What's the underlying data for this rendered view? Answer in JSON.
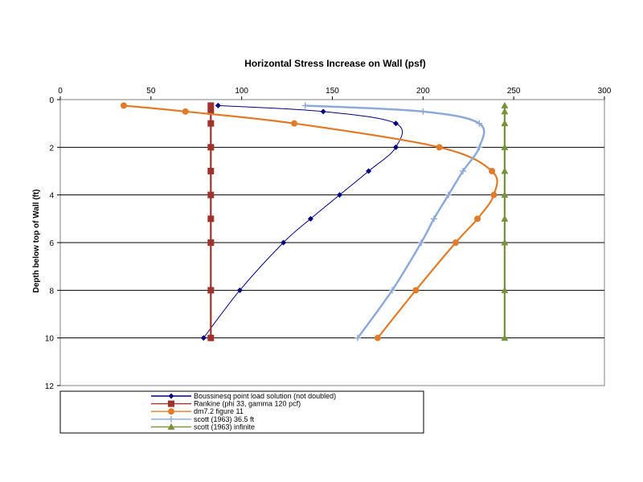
{
  "chart_data": {
    "type": "line",
    "title": "Horizontal Stress Increase on Wall (psf)",
    "xlabel": "",
    "ylabel": "Depth below top of Wall (ft)",
    "x_axis_position": "top",
    "y_axis_inverted": true,
    "xlim": [
      0,
      300
    ],
    "ylim": [
      0,
      12
    ],
    "x_ticks": [
      "0",
      "50",
      "100",
      "150",
      "200",
      "250",
      "300"
    ],
    "y_ticks": [
      "0",
      "2",
      "4",
      "6",
      "8",
      "10",
      "12"
    ],
    "grid": "horizontal",
    "legend_position": "bottom",
    "series": [
      {
        "name": "Boussinesq point load solution (not doubled)",
        "color": "#000080",
        "marker": "diamond",
        "points": [
          [
            87,
            0.25
          ],
          [
            145,
            0.5
          ],
          [
            185,
            1
          ],
          [
            185,
            2
          ],
          [
            170,
            3
          ],
          [
            154,
            4
          ],
          [
            138,
            5
          ],
          [
            123,
            6
          ],
          [
            99,
            8
          ],
          [
            79,
            10
          ]
        ]
      },
      {
        "name": "Rankine (phi 33, gamma 120 pcf)",
        "color": "#A0322D",
        "marker": "square",
        "points": [
          [
            83,
            0.25
          ],
          [
            83,
            0.5
          ],
          [
            83,
            1
          ],
          [
            83,
            2
          ],
          [
            83,
            3
          ],
          [
            83,
            4
          ],
          [
            83,
            5
          ],
          [
            83,
            6
          ],
          [
            83,
            8
          ],
          [
            83,
            10
          ]
        ]
      },
      {
        "name": "dm7.2 figure 11",
        "color": "#E07B2C",
        "marker": "circle",
        "points": [
          [
            35,
            0.25
          ],
          [
            69,
            0.5
          ],
          [
            129,
            1
          ],
          [
            209,
            2
          ],
          [
            238,
            3
          ],
          [
            239,
            4
          ],
          [
            230,
            5
          ],
          [
            218,
            6
          ],
          [
            196,
            8
          ],
          [
            175,
            10
          ]
        ]
      },
      {
        "name": "scott (1963) 36.5 ft",
        "color": "#8EA9D8",
        "marker": "plus",
        "points": [
          [
            135,
            0.25
          ],
          [
            200,
            0.5
          ],
          [
            231,
            1
          ],
          [
            231,
            2
          ],
          [
            222,
            3
          ],
          [
            214,
            4
          ],
          [
            206,
            5
          ],
          [
            199,
            6
          ],
          [
            183,
            8
          ],
          [
            164,
            10
          ]
        ]
      },
      {
        "name": "scott (1963) infinite",
        "color": "#76933C",
        "marker": "triangle",
        "points": [
          [
            245,
            0.25
          ],
          [
            245,
            0.5
          ],
          [
            245,
            1
          ],
          [
            245,
            2
          ],
          [
            245,
            3
          ],
          [
            245,
            4
          ],
          [
            245,
            5
          ],
          [
            245,
            6
          ],
          [
            245,
            8
          ],
          [
            245,
            10
          ]
        ]
      }
    ]
  }
}
